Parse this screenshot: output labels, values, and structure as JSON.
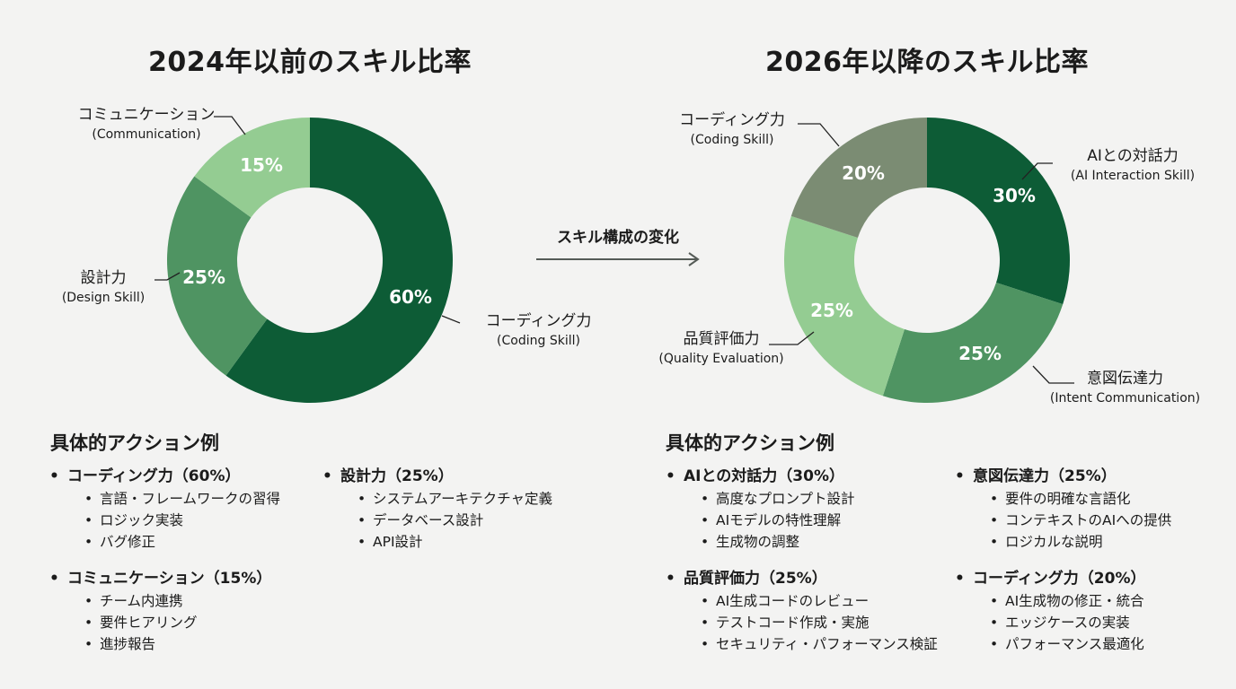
{
  "chart_data": [
    {
      "type": "pie",
      "title": "2024年以前のスキル比率",
      "slices": [
        {
          "label": "コーディング力",
          "label_en": "(Coding Skill)",
          "value": 60,
          "display": "60%",
          "color": "#0d5c36"
        },
        {
          "label": "設計力",
          "label_en": "(Design Skill)",
          "value": 25,
          "display": "25%",
          "color": "#4f9462"
        },
        {
          "label": "コミュニケーション",
          "label_en": "(Communication)",
          "value": 15,
          "display": "15%",
          "color": "#94cc92"
        }
      ]
    },
    {
      "type": "pie",
      "title": "2026年以降のスキル比率",
      "slices": [
        {
          "label": "AIとの対話力",
          "label_en": "(AI Interaction Skill)",
          "value": 30,
          "display": "30%",
          "color": "#0d5c36"
        },
        {
          "label": "意図伝達力",
          "label_en": "(Intent Communication)",
          "value": 25,
          "display": "25%",
          "color": "#4f9462"
        },
        {
          "label": "品質評価力",
          "label_en": "(Quality Evaluation)",
          "value": 25,
          "display": "25%",
          "color": "#94cc92"
        },
        {
          "label": "コーディング力",
          "label_en": "(Coding Skill)",
          "value": 20,
          "display": "20%",
          "color": "#7b8c73"
        }
      ]
    }
  ],
  "transition_label": "スキル構成の変化",
  "arrow_color": "#555b57",
  "actions_left": {
    "heading": "具体的アクション例",
    "groups": [
      {
        "title": "コーディング力（60%）",
        "items": [
          "言語・フレームワークの習得",
          "ロジック実装",
          "バグ修正"
        ]
      },
      {
        "title": "設計力（25%）",
        "items": [
          "システムアーキテクチャ定義",
          "データベース設計",
          "API設計"
        ]
      },
      {
        "title": "コミュニケーション（15%）",
        "items": [
          "チーム内連携",
          "要件ヒアリング",
          "進捗報告"
        ]
      }
    ]
  },
  "actions_right": {
    "heading": "具体的アクション例",
    "groups": [
      {
        "title": "AIとの対話力（30%）",
        "items": [
          "高度なプロンプト設計",
          "AIモデルの特性理解",
          "生成物の調整"
        ]
      },
      {
        "title": "意図伝達力（25%）",
        "items": [
          "要件の明確な言語化",
          "コンテキストのAIへの提供",
          "ロジカルな説明"
        ]
      },
      {
        "title": "品質評価力（25%）",
        "items": [
          "AI生成コードのレビュー",
          "テストコード作成・実施",
          "セキュリティ・パフォーマンス検証"
        ]
      },
      {
        "title": "コーディング力（20%）",
        "items": [
          "AI生成物の修正・統合",
          "エッジケースの実装",
          "パフォーマンス最適化"
        ]
      }
    ]
  }
}
